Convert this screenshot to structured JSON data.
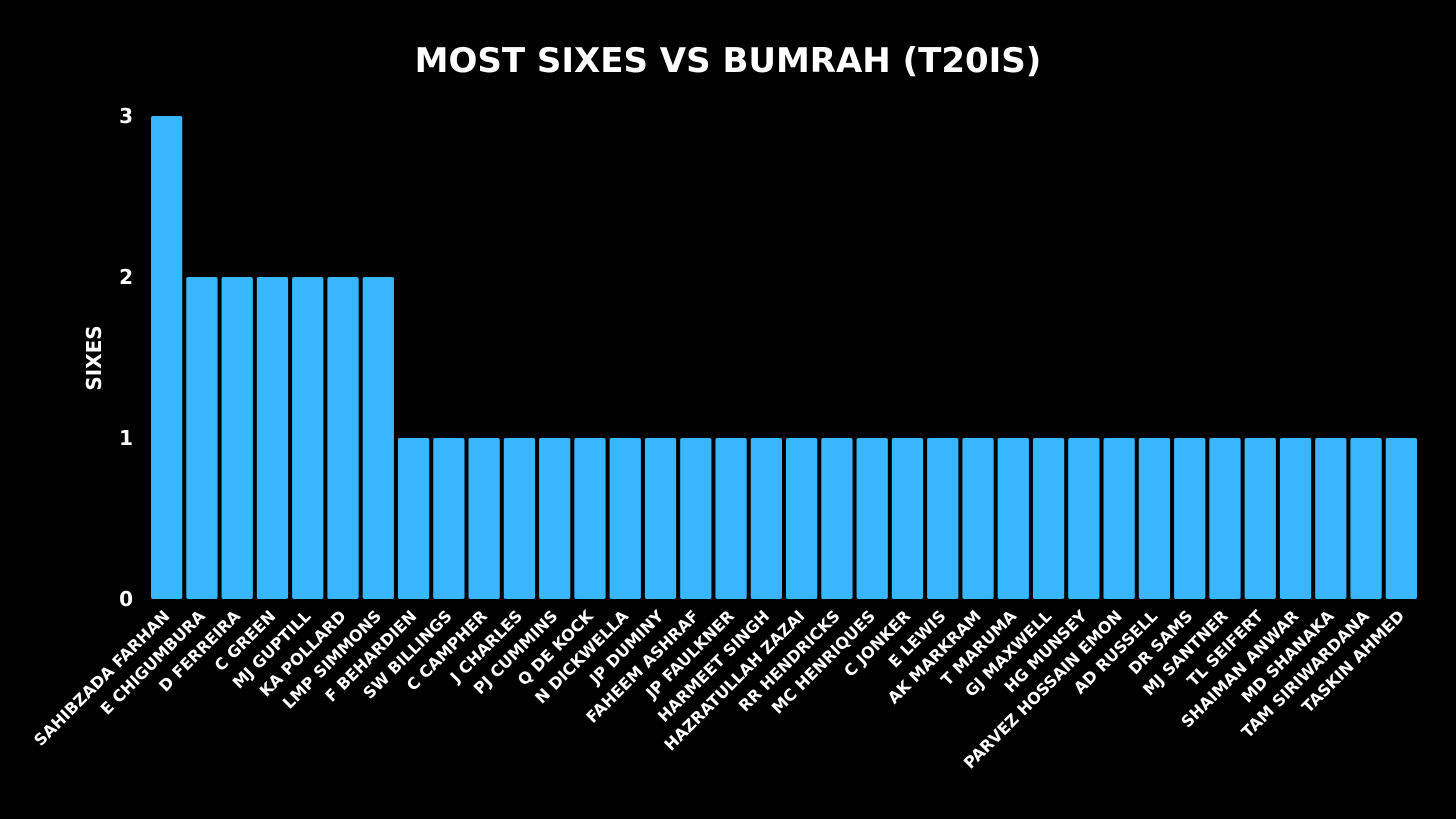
{
  "colors": {
    "background": "#000000",
    "bar": "#38b6ff",
    "text": "#ffffff"
  },
  "chart_data": {
    "type": "bar",
    "title": "MOST SIXES VS BUMRAH (T20IS)",
    "xlabel": "",
    "ylabel": "SIXES",
    "ylim": [
      0,
      3
    ],
    "yticks": [
      "0",
      "1",
      "2",
      "3"
    ],
    "grid": false,
    "legend": "none",
    "categories": [
      "SAHIBZADA FARHAN",
      "E CHIGUMBURA",
      "D FERREIRA",
      "C GREEN",
      "MJ GUPTILL",
      "KA POLLARD",
      "LMP SIMMONS",
      "F BEHARDIEN",
      "SW BILLINGS",
      "C CAMPHER",
      "J CHARLES",
      "PJ CUMMINS",
      "Q DE KOCK",
      "N DICKWELLA",
      "JP DUMINY",
      "FAHEEM ASHRAF",
      "JP FAULKNER",
      "HARMEET SINGH",
      "HAZRATULLAH ZAZAI",
      "RR HENDRICKS",
      "MC HENRIQUES",
      "C JONKER",
      "E LEWIS",
      "AK MARKRAM",
      "T MARUMA",
      "GJ MAXWELL",
      "HG MUNSEY",
      "PARVEZ HOSSAIN EMON",
      "AD RUSSELL",
      "DR SAMS",
      "MJ SANTNER",
      "TL SEIFERT",
      "SHAIMAN ANWAR",
      "MD SHANAKA",
      "TAM SIRIWARDANA",
      "TASKIN AHMED"
    ],
    "values": [
      3,
      2,
      2,
      2,
      2,
      2,
      2,
      1,
      1,
      1,
      1,
      1,
      1,
      1,
      1,
      1,
      1,
      1,
      1,
      1,
      1,
      1,
      1,
      1,
      1,
      1,
      1,
      1,
      1,
      1,
      1,
      1,
      1,
      1,
      1,
      1
    ]
  }
}
